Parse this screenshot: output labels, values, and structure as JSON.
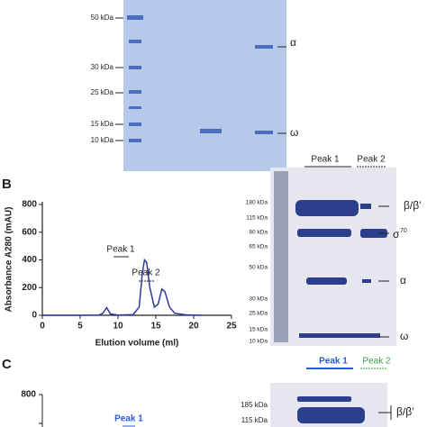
{
  "panel_a": {
    "markers": [
      "50 kDa",
      "30 kDa",
      "25 kDa",
      "15 kDa",
      "10 kDa"
    ],
    "bands": [
      "α",
      "ω"
    ]
  },
  "panel_b": {
    "letter": "B",
    "gel": {
      "peak1": "Peak 1",
      "peak2": "Peak 2",
      "markers": [
        "180 kDa",
        "115 kDa",
        "80 kDa",
        "65 kDa",
        "50 kDa",
        "30 kDa",
        "25 kDa",
        "15 kDa",
        "10 kDa"
      ],
      "bands": [
        "β/β′",
        "σ",
        "70",
        "α",
        "ω"
      ]
    }
  },
  "chart_data": {
    "type": "line",
    "xlabel": "Elution volume (ml)",
    "ylabel": "Absorbance A280 (mAU)",
    "x": [
      0,
      5,
      7.5,
      8,
      8.5,
      9,
      10,
      12,
      12.8,
      13.2,
      13.5,
      13.8,
      14.2,
      14.8,
      15.3,
      15.8,
      16.2,
      16.8,
      17.5,
      19,
      21
    ],
    "values": [
      0,
      0,
      2,
      15,
      55,
      10,
      2,
      5,
      60,
      300,
      400,
      380,
      200,
      60,
      80,
      190,
      170,
      60,
      15,
      3,
      0
    ],
    "color": "#2b3a9c",
    "xlim": [
      0,
      25
    ],
    "ylim": [
      0,
      800
    ],
    "xticks": [
      0,
      5,
      10,
      15,
      20,
      25
    ],
    "yticks": [
      0,
      200,
      400,
      600,
      800
    ],
    "annotations": [
      "Peak 1",
      "Peak 2"
    ]
  },
  "panel_c": {
    "letter": "C",
    "ytick_top": "800",
    "peak1": "Peak 1",
    "gel": {
      "peak1": "Peak 1",
      "peak2": "Peak 2",
      "markers": [
        "185 kDa",
        "115 kDa"
      ],
      "band": "β/β′"
    }
  }
}
